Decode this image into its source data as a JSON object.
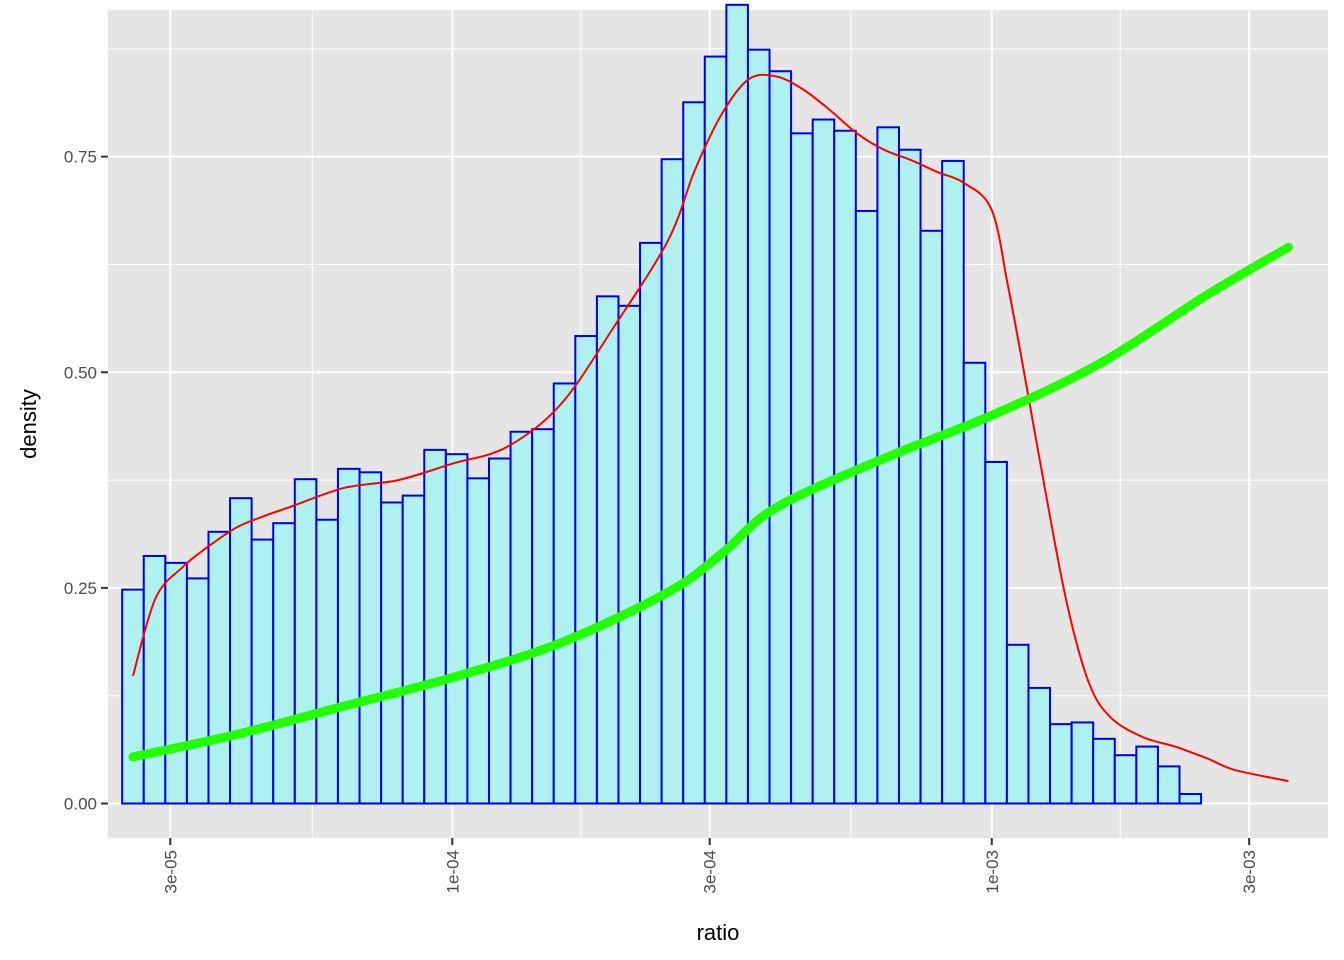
{
  "chart_data": {
    "type": "bar",
    "xlabel": "ratio",
    "ylabel": "density",
    "x_scale": "log10",
    "xlim": [
      2.3e-05,
      0.0042
    ],
    "ylim": [
      -0.04,
      0.92
    ],
    "grid": true,
    "x_ticks": [
      {
        "value": 3e-05,
        "label": "3e-05"
      },
      {
        "value": 0.0001,
        "label": "1e-04"
      },
      {
        "value": 0.0003,
        "label": "3e-04"
      },
      {
        "value": 0.001,
        "label": "1e-03"
      },
      {
        "value": 0.003,
        "label": "3e-03"
      }
    ],
    "x_minor_ticks": [
      1.7e-05,
      5.5e-05,
      0.000173,
      0.000548,
      0.00173
    ],
    "y_ticks": [
      {
        "value": 0.0,
        "label": "0.00"
      },
      {
        "value": 0.25,
        "label": "0.25"
      },
      {
        "value": 0.5,
        "label": "0.50"
      },
      {
        "value": 0.75,
        "label": "0.75"
      }
    ],
    "y_minor_ticks": [
      0.125,
      0.375,
      0.625,
      0.875
    ],
    "histogram": {
      "log10_start": -4.612,
      "log10_binwidth": 0.04,
      "density": [
        0.248,
        0.287,
        0.279,
        0.261,
        0.315,
        0.354,
        0.306,
        0.325,
        0.376,
        0.329,
        0.388,
        0.384,
        0.349,
        0.357,
        0.41,
        0.405,
        0.377,
        0.4,
        0.431,
        0.434,
        0.487,
        0.542,
        0.588,
        0.577,
        0.65,
        0.747,
        0.813,
        0.866,
        0.926,
        0.874,
        0.849,
        0.777,
        0.793,
        0.78,
        0.687,
        0.784,
        0.758,
        0.664,
        0.745,
        0.511,
        0.396,
        0.184,
        0.134,
        0.092,
        0.094,
        0.075,
        0.056,
        0.066,
        0.043,
        0.011
      ]
    },
    "density_curve": {
      "name": "density",
      "log10_x": [
        -4.592,
        -4.55,
        -4.5,
        -4.45,
        -4.4,
        -4.35,
        -4.3,
        -4.2,
        -4.1,
        -4.0,
        -3.9,
        -3.8,
        -3.7,
        -3.6,
        -3.55,
        -3.5,
        -3.45,
        -3.4,
        -3.35,
        -3.3,
        -3.25,
        -3.2,
        -3.15,
        -3.1,
        -3.05,
        -3.0,
        -2.97,
        -2.94,
        -2.9,
        -2.86,
        -2.82,
        -2.78,
        -2.72,
        -2.66,
        -2.6,
        -2.55,
        -2.45
      ],
      "y": [
        0.148,
        0.238,
        0.274,
        0.299,
        0.32,
        0.333,
        0.344,
        0.366,
        0.375,
        0.394,
        0.413,
        0.462,
        0.553,
        0.653,
        0.735,
        0.8,
        0.84,
        0.843,
        0.828,
        0.804,
        0.777,
        0.758,
        0.746,
        0.732,
        0.719,
        0.688,
        0.6,
        0.5,
        0.36,
        0.23,
        0.14,
        0.1,
        0.077,
        0.066,
        0.052,
        0.039,
        0.026
      ]
    },
    "trend_curve": {
      "name": "smooth",
      "log10_x": [
        -4.592,
        -4.4,
        -4.2,
        -4.0,
        -3.8,
        -3.6,
        -3.5,
        -3.4,
        -3.2,
        -3.0,
        -2.8,
        -2.6,
        -2.45
      ],
      "y": [
        0.054,
        0.08,
        0.113,
        0.146,
        0.186,
        0.245,
        0.29,
        0.343,
        0.4,
        0.45,
        0.51,
        0.59,
        0.645
      ]
    },
    "colors": {
      "panel_background": "#e5e5e5",
      "grid_line": "#ffffff",
      "bar_fill": "#aff0f0",
      "bar_outline": "#0000ee",
      "density_line": "#ff0000",
      "trend_line": "#22ff00",
      "tick_text": "#4d4d4d",
      "axis_text": "#000000"
    }
  }
}
